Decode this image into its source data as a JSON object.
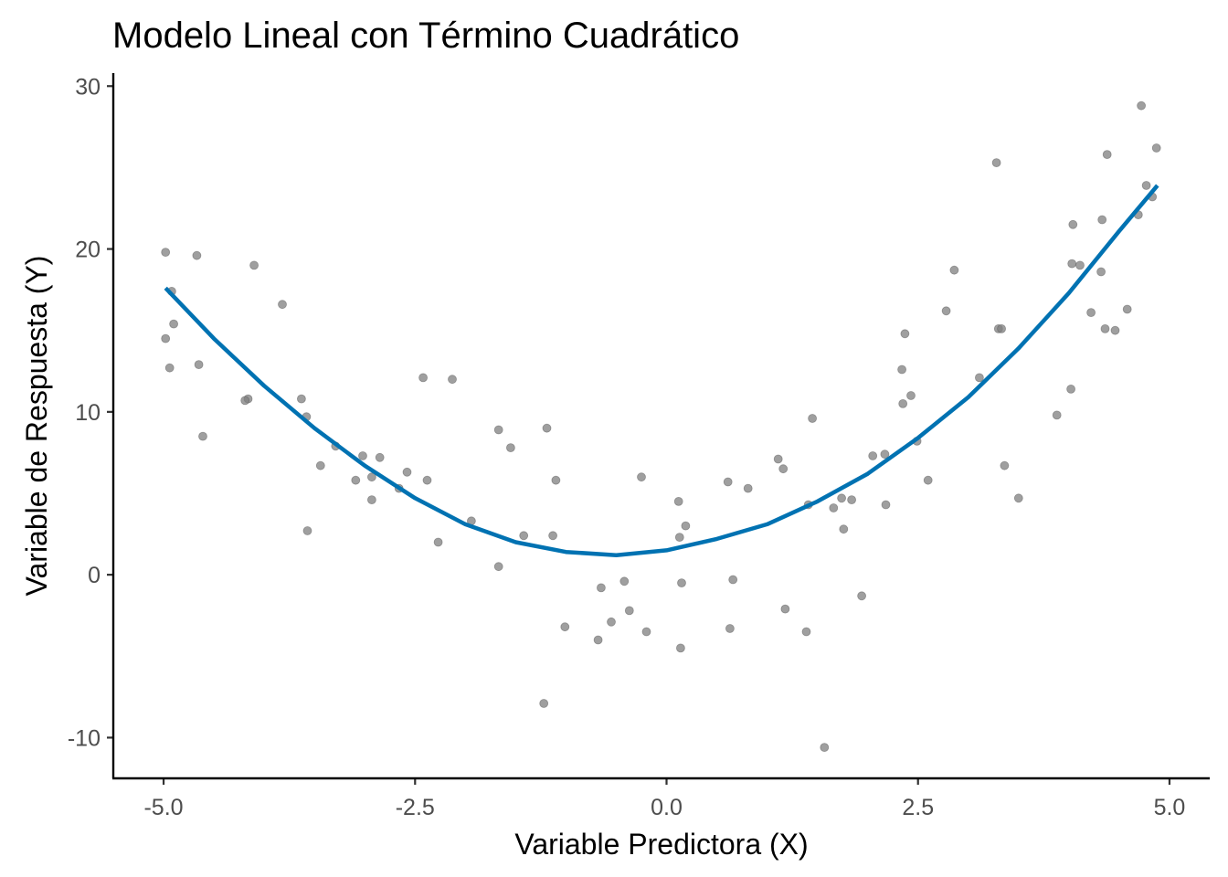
{
  "chart_data": {
    "type": "scatter",
    "title": "Modelo Lineal con Término Cuadrático",
    "xlabel": "Variable Predictora (X)",
    "ylabel": "Variable de Respuesta (Y)",
    "xlim": [
      -5.5,
      5.4
    ],
    "ylim": [
      -12.5,
      30.8
    ],
    "x_ticks": [
      -5.0,
      -2.5,
      0.0,
      2.5,
      5.0
    ],
    "x_tick_labels": [
      "-5.0",
      "-2.5",
      "0.0",
      "2.5",
      "5.0"
    ],
    "y_ticks": [
      -10,
      0,
      10,
      20,
      30
    ],
    "y_tick_labels": [
      "-10",
      "0",
      "10",
      "20",
      "30"
    ],
    "grid": false,
    "colors": {
      "points": "#808080",
      "fit_line": "#0072B2",
      "axis": "#000000",
      "tick_label": "#4d4d4d"
    },
    "points": [
      [
        -4.98,
        19.8
      ],
      [
        -4.92,
        17.4
      ],
      [
        -4.98,
        14.5
      ],
      [
        -4.9,
        15.4
      ],
      [
        -4.94,
        12.7
      ],
      [
        -4.67,
        19.6
      ],
      [
        -4.65,
        12.9
      ],
      [
        -4.61,
        8.5
      ],
      [
        -4.1,
        19.0
      ],
      [
        -4.16,
        10.8
      ],
      [
        -4.19,
        10.7
      ],
      [
        -3.82,
        16.6
      ],
      [
        -3.63,
        10.8
      ],
      [
        -3.58,
        9.7
      ],
      [
        -3.57,
        2.7
      ],
      [
        -3.44,
        6.7
      ],
      [
        -3.29,
        7.9
      ],
      [
        -3.09,
        5.8
      ],
      [
        -3.02,
        7.3
      ],
      [
        -2.93,
        6.0
      ],
      [
        -2.93,
        4.6
      ],
      [
        -2.85,
        7.2
      ],
      [
        -2.66,
        5.3
      ],
      [
        -2.58,
        6.3
      ],
      [
        -2.42,
        12.1
      ],
      [
        -2.38,
        5.8
      ],
      [
        -2.27,
        2.0
      ],
      [
        -2.13,
        12.0
      ],
      [
        -1.94,
        3.3
      ],
      [
        -1.67,
        8.9
      ],
      [
        -1.67,
        0.5
      ],
      [
        -1.55,
        7.8
      ],
      [
        -1.42,
        2.4
      ],
      [
        -1.22,
        -7.9
      ],
      [
        -1.19,
        9.0
      ],
      [
        -1.13,
        2.4
      ],
      [
        -1.1,
        5.8
      ],
      [
        -1.01,
        -3.2
      ],
      [
        -0.68,
        -4.0
      ],
      [
        -0.65,
        -0.8
      ],
      [
        -0.55,
        -2.9
      ],
      [
        -0.42,
        -0.4
      ],
      [
        -0.37,
        -2.2
      ],
      [
        -0.25,
        6.0
      ],
      [
        -0.2,
        -3.5
      ],
      [
        0.12,
        4.5
      ],
      [
        0.13,
        2.3
      ],
      [
        0.14,
        -4.5
      ],
      [
        0.15,
        -0.5
      ],
      [
        0.19,
        3.0
      ],
      [
        0.61,
        5.7
      ],
      [
        0.63,
        -3.3
      ],
      [
        0.66,
        -0.3
      ],
      [
        0.81,
        5.3
      ],
      [
        1.11,
        7.1
      ],
      [
        1.16,
        6.5
      ],
      [
        1.18,
        -2.1
      ],
      [
        1.39,
        -3.5
      ],
      [
        1.41,
        4.3
      ],
      [
        1.45,
        9.6
      ],
      [
        1.57,
        -10.6
      ],
      [
        1.66,
        4.1
      ],
      [
        1.74,
        4.7
      ],
      [
        1.76,
        2.8
      ],
      [
        1.84,
        4.6
      ],
      [
        1.94,
        -1.3
      ],
      [
        2.05,
        7.3
      ],
      [
        2.17,
        7.4
      ],
      [
        2.18,
        4.3
      ],
      [
        2.34,
        12.6
      ],
      [
        2.35,
        10.5
      ],
      [
        2.37,
        14.8
      ],
      [
        2.43,
        11.0
      ],
      [
        2.49,
        8.2
      ],
      [
        2.6,
        5.8
      ],
      [
        2.78,
        16.2
      ],
      [
        2.86,
        18.7
      ],
      [
        3.11,
        12.1
      ],
      [
        3.28,
        25.3
      ],
      [
        3.3,
        15.1
      ],
      [
        3.33,
        15.1
      ],
      [
        3.36,
        6.7
      ],
      [
        3.5,
        4.7
      ],
      [
        3.88,
        9.8
      ],
      [
        4.02,
        11.4
      ],
      [
        4.03,
        19.1
      ],
      [
        4.04,
        21.5
      ],
      [
        4.11,
        19.0
      ],
      [
        4.22,
        16.1
      ],
      [
        4.32,
        18.6
      ],
      [
        4.33,
        21.8
      ],
      [
        4.36,
        15.1
      ],
      [
        4.38,
        25.8
      ],
      [
        4.46,
        15.0
      ],
      [
        4.58,
        16.3
      ],
      [
        4.69,
        22.1
      ],
      [
        4.72,
        28.8
      ],
      [
        4.77,
        23.9
      ],
      [
        4.83,
        23.2
      ],
      [
        4.87,
        26.2
      ]
    ],
    "fit_line": {
      "x": [
        -4.98,
        -4.5,
        -4.0,
        -3.5,
        -3.0,
        -2.5,
        -2.0,
        -1.5,
        -1.0,
        -0.5,
        0.0,
        0.5,
        1.0,
        1.5,
        2.0,
        2.5,
        3.0,
        3.5,
        4.0,
        4.5,
        4.88
      ],
      "y": [
        17.6,
        14.5,
        11.6,
        9.0,
        6.7,
        4.7,
        3.1,
        2.0,
        1.4,
        1.2,
        1.5,
        2.2,
        3.1,
        4.5,
        6.2,
        8.4,
        10.9,
        13.9,
        17.3,
        21.1,
        23.9
      ]
    }
  }
}
